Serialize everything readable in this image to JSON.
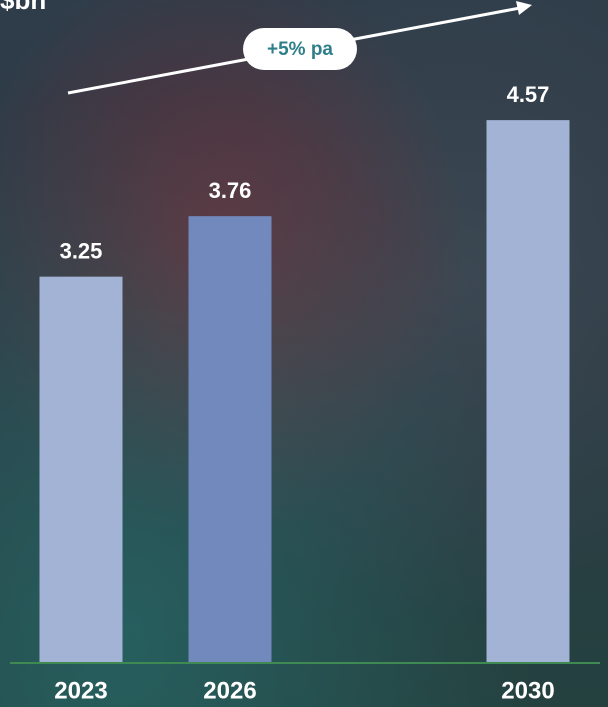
{
  "chart_data": {
    "type": "bar",
    "title": "$bn",
    "categories": [
      "2023",
      "2026",
      "2030"
    ],
    "values": [
      3.25,
      3.76,
      4.57
    ],
    "colors": [
      "#a3b3d6",
      "#7189bd",
      "#a3b3d6"
    ],
    "ylim": [
      0,
      5.6
    ],
    "annotation": "+5% pa"
  }
}
